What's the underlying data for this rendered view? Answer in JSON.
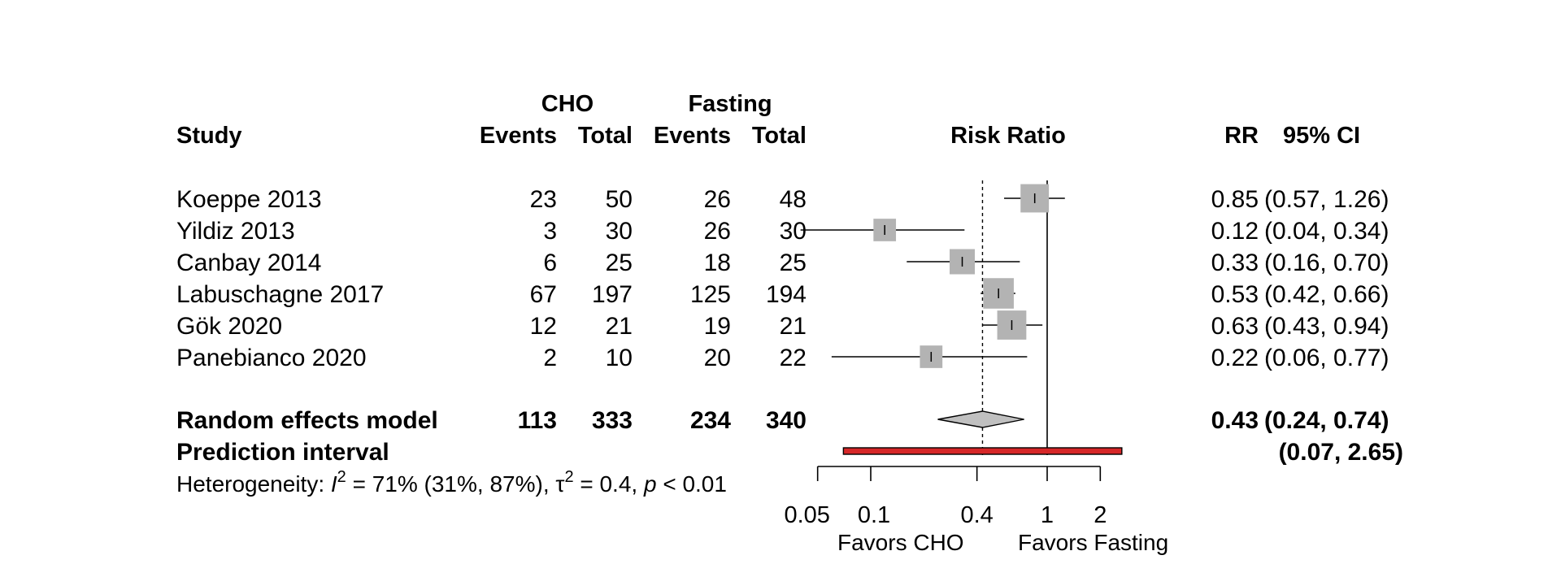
{
  "chart_data": {
    "type": "forest",
    "title": "",
    "x_scale": "log",
    "xlabel": "Risk Ratio",
    "x_ticks": [
      0.05,
      0.1,
      0.4,
      1,
      2
    ],
    "x_tick_labels": [
      "0.05",
      "0.1",
      "0.4",
      "1",
      "2"
    ],
    "xlim": [
      0.05,
      2
    ],
    "null_line": 1,
    "pooled_reference_line": 0.43,
    "group_headers": [
      "CHO",
      "Fasting"
    ],
    "column_headers": [
      "Study",
      "Events",
      "Total",
      "Events",
      "Total",
      "RR",
      "95% CI"
    ],
    "studies": [
      {
        "study": "Koeppe 2013",
        "cho_events": "23",
        "cho_total": "50",
        "fast_events": "26",
        "fast_total": "48",
        "rr_text": "0.85",
        "ci_text": "(0.57, 1.26)",
        "rr": 0.85,
        "lower": 0.57,
        "upper": 1.26,
        "weight": 0.19
      },
      {
        "study": "Yildiz 2013",
        "cho_events": "3",
        "cho_total": "30",
        "fast_events": "26",
        "fast_total": "30",
        "rr_text": "0.12",
        "ci_text": "(0.04, 0.34)",
        "rr": 0.12,
        "lower": 0.04,
        "upper": 0.34,
        "weight": 0.12
      },
      {
        "study": "Canbay 2014",
        "cho_events": "6",
        "cho_total": "25",
        "fast_events": "18",
        "fast_total": "25",
        "rr_text": "0.33",
        "ci_text": "(0.16, 0.70)",
        "rr": 0.33,
        "lower": 0.16,
        "upper": 0.7,
        "weight": 0.15
      },
      {
        "study": "Labuschagne 2017",
        "cho_events": "67",
        "cho_total": "197",
        "fast_events": "125",
        "fast_total": "194",
        "rr_text": "0.53",
        "ci_text": "(0.42, 0.66)",
        "rr": 0.53,
        "lower": 0.42,
        "upper": 0.66,
        "weight": 0.22
      },
      {
        "study": "Gök 2020",
        "cho_events": "12",
        "cho_total": "21",
        "fast_events": "19",
        "fast_total": "21",
        "rr_text": "0.63",
        "ci_text": "(0.43, 0.94)",
        "rr": 0.63,
        "lower": 0.43,
        "upper": 0.94,
        "weight": 0.2
      },
      {
        "study": "Panebianco 2020",
        "cho_events": "2",
        "cho_total": "10",
        "fast_events": "20",
        "fast_total": "22",
        "rr_text": "0.22",
        "ci_text": "(0.06, 0.77)",
        "rr": 0.22,
        "lower": 0.06,
        "upper": 0.77,
        "weight": 0.12
      }
    ],
    "random_effects": {
      "label": "Random effects model",
      "cho_events": "113",
      "cho_total": "333",
      "fast_events": "234",
      "fast_total": "340",
      "rr_text": "0.43",
      "ci_text": "(0.24, 0.74)",
      "rr": 0.43,
      "lower": 0.24,
      "upper": 0.74
    },
    "prediction_interval": {
      "label": "Prediction interval",
      "ci_text": "(0.07, 2.65)",
      "lower": 0.07,
      "upper": 2.65
    },
    "heterogeneity": {
      "prefix": "Heterogeneity: ",
      "i2_symbol": "I",
      "i2_rest": " = 71% (31%, 87%), ",
      "tau": "τ",
      "tau_rest": " = 0.4, ",
      "p_symbol": "p",
      "p_rest": " < 0.01"
    },
    "favors_left": "Favors CHO",
    "favors_right": "Favors Fasting",
    "colors": {
      "square": "#b3b3b3",
      "diamond": "#c0c0c0",
      "prediction": "#d62728",
      "line": "#000000"
    }
  }
}
